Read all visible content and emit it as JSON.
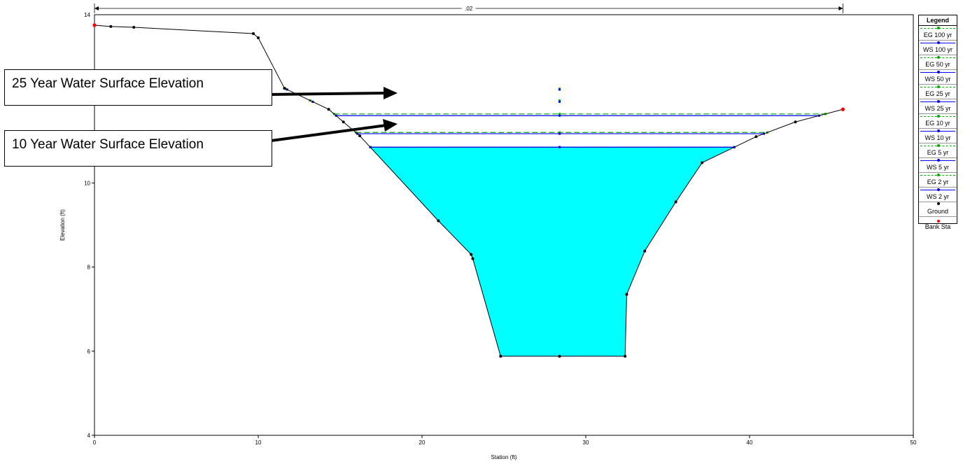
{
  "chart_data": {
    "type": "area",
    "title": "",
    "xlabel": "Station (ft)",
    "ylabel": "Elevation (ft)",
    "xlim": [
      0,
      50
    ],
    "ylim": [
      4,
      14
    ],
    "x_ticks": [
      0,
      10,
      20,
      30,
      40,
      50
    ],
    "y_ticks": [
      4,
      6,
      8,
      10
    ],
    "y_top_label": "14",
    "roughness_label": ".02",
    "roughness_span": [
      0,
      45.7
    ],
    "ground": [
      [
        0,
        13.75
      ],
      [
        1.0,
        13.72
      ],
      [
        2.4,
        13.7
      ],
      [
        9.7,
        13.55
      ],
      [
        10.0,
        13.45
      ],
      [
        11.6,
        12.25
      ],
      [
        14.3,
        11.75
      ],
      [
        15.2,
        11.45
      ],
      [
        16.2,
        11.12
      ],
      [
        21.0,
        9.1
      ],
      [
        23.0,
        8.3
      ],
      [
        23.1,
        8.2
      ],
      [
        24.8,
        5.88
      ],
      [
        28.4,
        5.88
      ],
      [
        32.4,
        5.88
      ],
      [
        32.5,
        7.35
      ],
      [
        33.6,
        8.38
      ],
      [
        35.5,
        9.55
      ],
      [
        37.1,
        10.48
      ],
      [
        40.4,
        11.1
      ],
      [
        42.8,
        11.45
      ],
      [
        45.7,
        11.75
      ]
    ],
    "bank_stations": [
      [
        0,
        13.75
      ],
      [
        45.7,
        11.75
      ]
    ],
    "series": [
      {
        "name": "EG 100 yr",
        "elevation": 12.24,
        "color": "#00aa00",
        "style": "dashed"
      },
      {
        "name": "WS 100 yr",
        "elevation": 12.22,
        "color": "#0000ff",
        "style": "solid"
      },
      {
        "name": "EG 50 yr",
        "elevation": 11.96,
        "color": "#00aa00",
        "style": "dashed"
      },
      {
        "name": "WS 50 yr",
        "elevation": 11.93,
        "color": "#0000ff",
        "style": "solid"
      },
      {
        "name": "EG 25 yr",
        "elevation": 11.64,
        "color": "#00aa00",
        "style": "dashed"
      },
      {
        "name": "WS 25 yr",
        "elevation": 11.6,
        "color": "#0000ff",
        "style": "solid"
      },
      {
        "name": "EG 10 yr",
        "elevation": 11.2,
        "color": "#00aa00",
        "style": "dashed"
      },
      {
        "name": "WS 10 yr",
        "elevation": 11.17,
        "color": "#0000ff",
        "style": "solid"
      },
      {
        "name": "EG 5 yr",
        "elevation": 10.85,
        "color": "#00aa00",
        "style": "dashed"
      },
      {
        "name": "WS 5 yr",
        "elevation": 10.85,
        "color": "#0000ff",
        "style": "solid"
      },
      {
        "name": "EG 2 yr",
        "elevation": 10.85,
        "color": "#00aa00",
        "style": "dashed"
      },
      {
        "name": "WS 2 yr",
        "elevation": 10.85,
        "color": "#0000ff",
        "style": "solid"
      }
    ],
    "water_fill_color": "#00ffff",
    "legend": {
      "title": "Legend",
      "placement": "right",
      "items": [
        {
          "label": "EG 100 yr",
          "kind": "dashed",
          "color": "#00aa00"
        },
        {
          "label": "WS 100 yr",
          "kind": "solid",
          "color": "#0000ff"
        },
        {
          "label": "EG 50 yr",
          "kind": "dashed",
          "color": "#00aa00"
        },
        {
          "label": "WS 50 yr",
          "kind": "solid",
          "color": "#0000ff"
        },
        {
          "label": "EG 25 yr",
          "kind": "dashed",
          "color": "#00aa00"
        },
        {
          "label": "WS 25 yr",
          "kind": "solid",
          "color": "#0000ff"
        },
        {
          "label": "EG 10 yr",
          "kind": "dashed",
          "color": "#00aa00"
        },
        {
          "label": "WS 10 yr",
          "kind": "solid",
          "color": "#0000ff"
        },
        {
          "label": "EG 5 yr",
          "kind": "dashed",
          "color": "#00aa00"
        },
        {
          "label": "WS 5 yr",
          "kind": "solid",
          "color": "#0000ff"
        },
        {
          "label": "EG 2 yr",
          "kind": "dashed",
          "color": "#00aa00"
        },
        {
          "label": "WS 2 yr",
          "kind": "solid",
          "color": "#0000ff"
        },
        {
          "label": "Ground",
          "kind": "ground",
          "color": "#000000"
        },
        {
          "label": "Bank Sta",
          "kind": "bank",
          "color": "#ff0000"
        }
      ]
    }
  },
  "annotations": {
    "callout_25": "25 Year Water Surface Elevation",
    "callout_10": "10 Year Water Surface Elevation"
  }
}
